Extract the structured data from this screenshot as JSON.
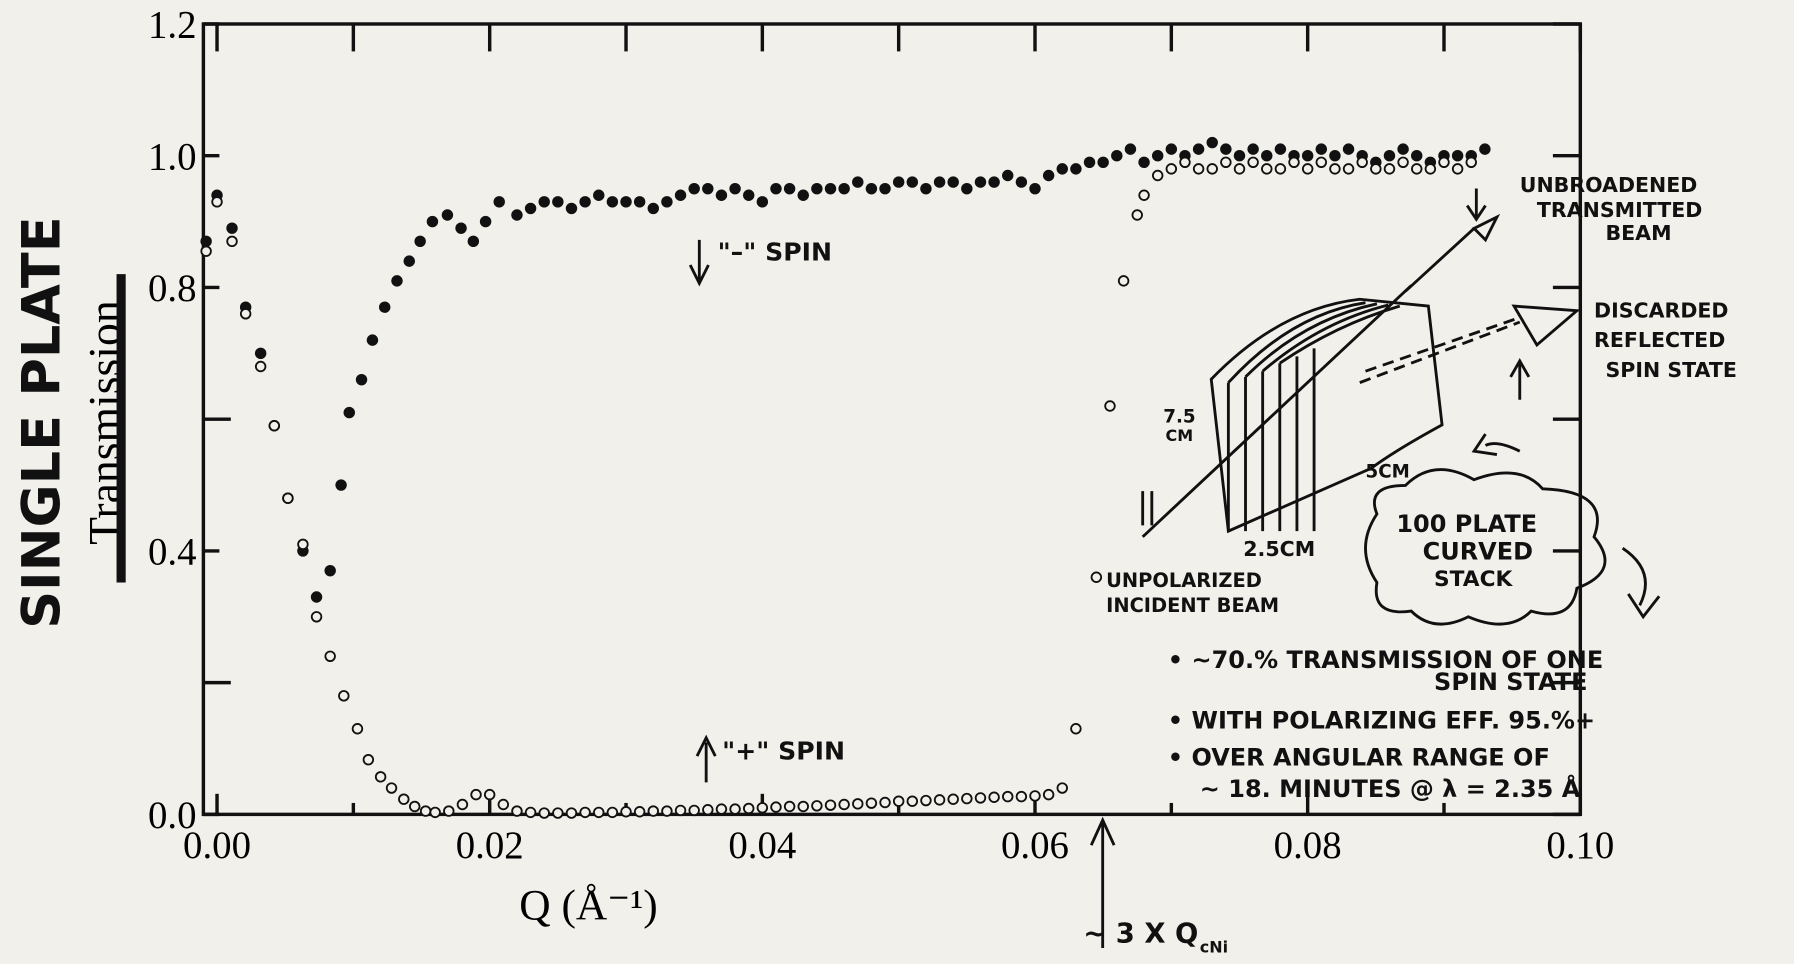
{
  "chart_data": {
    "type": "scatter",
    "y_title": "SINGLE PLATE",
    "y_subtitle": "Transmission",
    "x_label": "Q (Å⁻¹)",
    "xlim": [
      -0.001,
      0.1
    ],
    "ylim": [
      0,
      1.2
    ],
    "xticks": [
      {
        "value": 0,
        "label": "0.00"
      },
      0.02,
      0.04,
      0.06,
      0.08,
      {
        "value": 0.1,
        "label": "0.10"
      }
    ],
    "yticks": [
      {
        "value": 0,
        "label": "0.0"
      },
      0.4,
      0.8,
      {
        "value": 1,
        "label": "1.0"
      },
      1.2
    ],
    "minor_xticks": [
      0.01,
      0.03,
      0.05,
      0.07,
      0.09
    ],
    "minor_yticks": [
      0.2,
      0.6
    ],
    "series": [
      {
        "name": "\"–\" SPIN",
        "marker": "filled",
        "color": "#111111",
        "x": [
          -0.0008,
          0,
          0.0011,
          0.0021,
          0.0032,
          0.0042,
          0.0052,
          0.0063,
          0.0073,
          0.0083,
          0.0091,
          0.0097,
          0.0106,
          0.0114,
          0.0123,
          0.0132,
          0.0141,
          0.0149,
          0.0158,
          0.0169,
          0.0179,
          0.0188,
          0.0197,
          0.0207,
          0.022,
          0.023,
          0.024,
          0.025,
          0.026,
          0.027,
          0.028,
          0.029,
          0.03,
          0.031,
          0.032,
          0.033,
          0.034,
          0.035,
          0.036,
          0.037,
          0.038,
          0.039,
          0.04,
          0.041,
          0.042,
          0.043,
          0.044,
          0.045,
          0.046,
          0.047,
          0.048,
          0.049,
          0.05,
          0.051,
          0.052,
          0.053,
          0.054,
          0.055,
          0.056,
          0.057,
          0.058,
          0.059,
          0.06,
          0.061,
          0.062,
          0.063,
          0.064,
          0.065,
          0.066,
          0.067,
          0.068,
          0.069,
          0.07,
          0.071,
          0.072,
          0.073,
          0.074,
          0.075,
          0.076,
          0.077,
          0.078,
          0.079,
          0.08,
          0.081,
          0.082,
          0.083,
          0.084,
          0.085,
          0.086,
          0.087,
          0.088,
          0.089,
          0.09,
          0.091,
          0.092,
          0.093
        ],
        "values": [
          0.87,
          0.94,
          0.89,
          0.77,
          0.7,
          0.59,
          0.48,
          0.4,
          0.33,
          0.37,
          0.5,
          0.61,
          0.66,
          0.72,
          0.77,
          0.81,
          0.84,
          0.87,
          0.9,
          0.91,
          0.89,
          0.87,
          0.9,
          0.93,
          0.91,
          0.92,
          0.93,
          0.93,
          0.92,
          0.93,
          0.94,
          0.93,
          0.93,
          0.93,
          0.92,
          0.93,
          0.94,
          0.95,
          0.95,
          0.94,
          0.95,
          0.94,
          0.93,
          0.95,
          0.95,
          0.94,
          0.95,
          0.95,
          0.95,
          0.96,
          0.95,
          0.95,
          0.96,
          0.96,
          0.95,
          0.96,
          0.96,
          0.95,
          0.96,
          0.96,
          0.97,
          0.96,
          0.95,
          0.97,
          0.98,
          0.98,
          0.99,
          0.99,
          1.0,
          1.01,
          0.99,
          1.0,
          1.01,
          1.0,
          1.01,
          1.02,
          1.01,
          1.0,
          1.01,
          1.0,
          1.01,
          1.0,
          1.0,
          1.01,
          1.0,
          1.01,
          1.0,
          0.99,
          1.0,
          1.01,
          1.0,
          0.99,
          1.0,
          1.0,
          1.0,
          1.01
        ]
      },
      {
        "name": "\"+\" SPIN",
        "marker": "open",
        "color": "#111111",
        "x": [
          -0.0008,
          0,
          0.0011,
          0.0021,
          0.0032,
          0.0042,
          0.0052,
          0.0063,
          0.0073,
          0.0083,
          0.0093,
          0.0103,
          0.0111,
          0.012,
          0.0128,
          0.0137,
          0.0145,
          0.0153,
          0.016,
          0.017,
          0.018,
          0.019,
          0.02,
          0.021,
          0.022,
          0.023,
          0.024,
          0.025,
          0.026,
          0.027,
          0.028,
          0.029,
          0.03,
          0.031,
          0.032,
          0.033,
          0.034,
          0.035,
          0.036,
          0.037,
          0.038,
          0.039,
          0.04,
          0.041,
          0.042,
          0.043,
          0.044,
          0.045,
          0.046,
          0.047,
          0.048,
          0.049,
          0.05,
          0.051,
          0.052,
          0.053,
          0.054,
          0.055,
          0.056,
          0.057,
          0.058,
          0.059,
          0.06,
          0.061,
          0.062,
          0.063,
          0.0645,
          0.0655,
          0.0665,
          0.0675,
          0.068,
          0.069,
          0.07,
          0.071,
          0.072,
          0.073,
          0.074,
          0.075,
          0.076,
          0.077,
          0.078,
          0.079,
          0.08,
          0.081,
          0.082,
          0.083,
          0.084,
          0.085,
          0.086,
          0.087,
          0.088,
          0.089,
          0.09,
          0.091,
          0.092
        ],
        "values": [
          0.855,
          0.93,
          0.87,
          0.76,
          0.68,
          0.59,
          0.48,
          0.41,
          0.3,
          0.24,
          0.18,
          0.13,
          0.083,
          0.057,
          0.04,
          0.023,
          0.012,
          0.005,
          0.003,
          0.005,
          0.015,
          0.03,
          0.03,
          0.015,
          0.005,
          0.003,
          0.002,
          0.002,
          0.002,
          0.003,
          0.003,
          0.003,
          0.004,
          0.004,
          0.005,
          0.005,
          0.006,
          0.006,
          0.007,
          0.008,
          0.008,
          0.009,
          0.01,
          0.011,
          0.012,
          0.012,
          0.013,
          0.014,
          0.015,
          0.016,
          0.017,
          0.018,
          0.02,
          0.02,
          0.021,
          0.022,
          0.023,
          0.024,
          0.025,
          0.026,
          0.027,
          0.027,
          0.028,
          0.03,
          0.04,
          0.13,
          0.36,
          0.62,
          0.81,
          0.91,
          0.94,
          0.97,
          0.98,
          0.99,
          0.98,
          0.98,
          0.99,
          0.98,
          0.99,
          0.98,
          0.98,
          0.99,
          0.98,
          0.99,
          0.98,
          0.98,
          0.99,
          0.98,
          0.98,
          0.99,
          0.98,
          0.98,
          0.99,
          0.98,
          0.99
        ]
      }
    ],
    "annotations": [
      "UNBROADENED",
      "TRANSMITTED",
      "BEAM",
      "DISCARDED",
      "REFLECTED",
      "SPIN STATE",
      "7.5",
      "CM",
      "5CM",
      "2.5CM",
      "UNPOLARIZED",
      "INCIDENT BEAM",
      "100 PLATE",
      "CURVED",
      "STACK",
      "• ~70.% TRANSMISSION OF ONE",
      "SPIN STATE",
      "• WITH POLARIZING EFF. 95.%+",
      "• OVER ANGULAR RANGE OF",
      "~ 18. MINUTES @ λ = 2.35 Å",
      "~ 3 X Q",
      "cNi"
    ]
  }
}
